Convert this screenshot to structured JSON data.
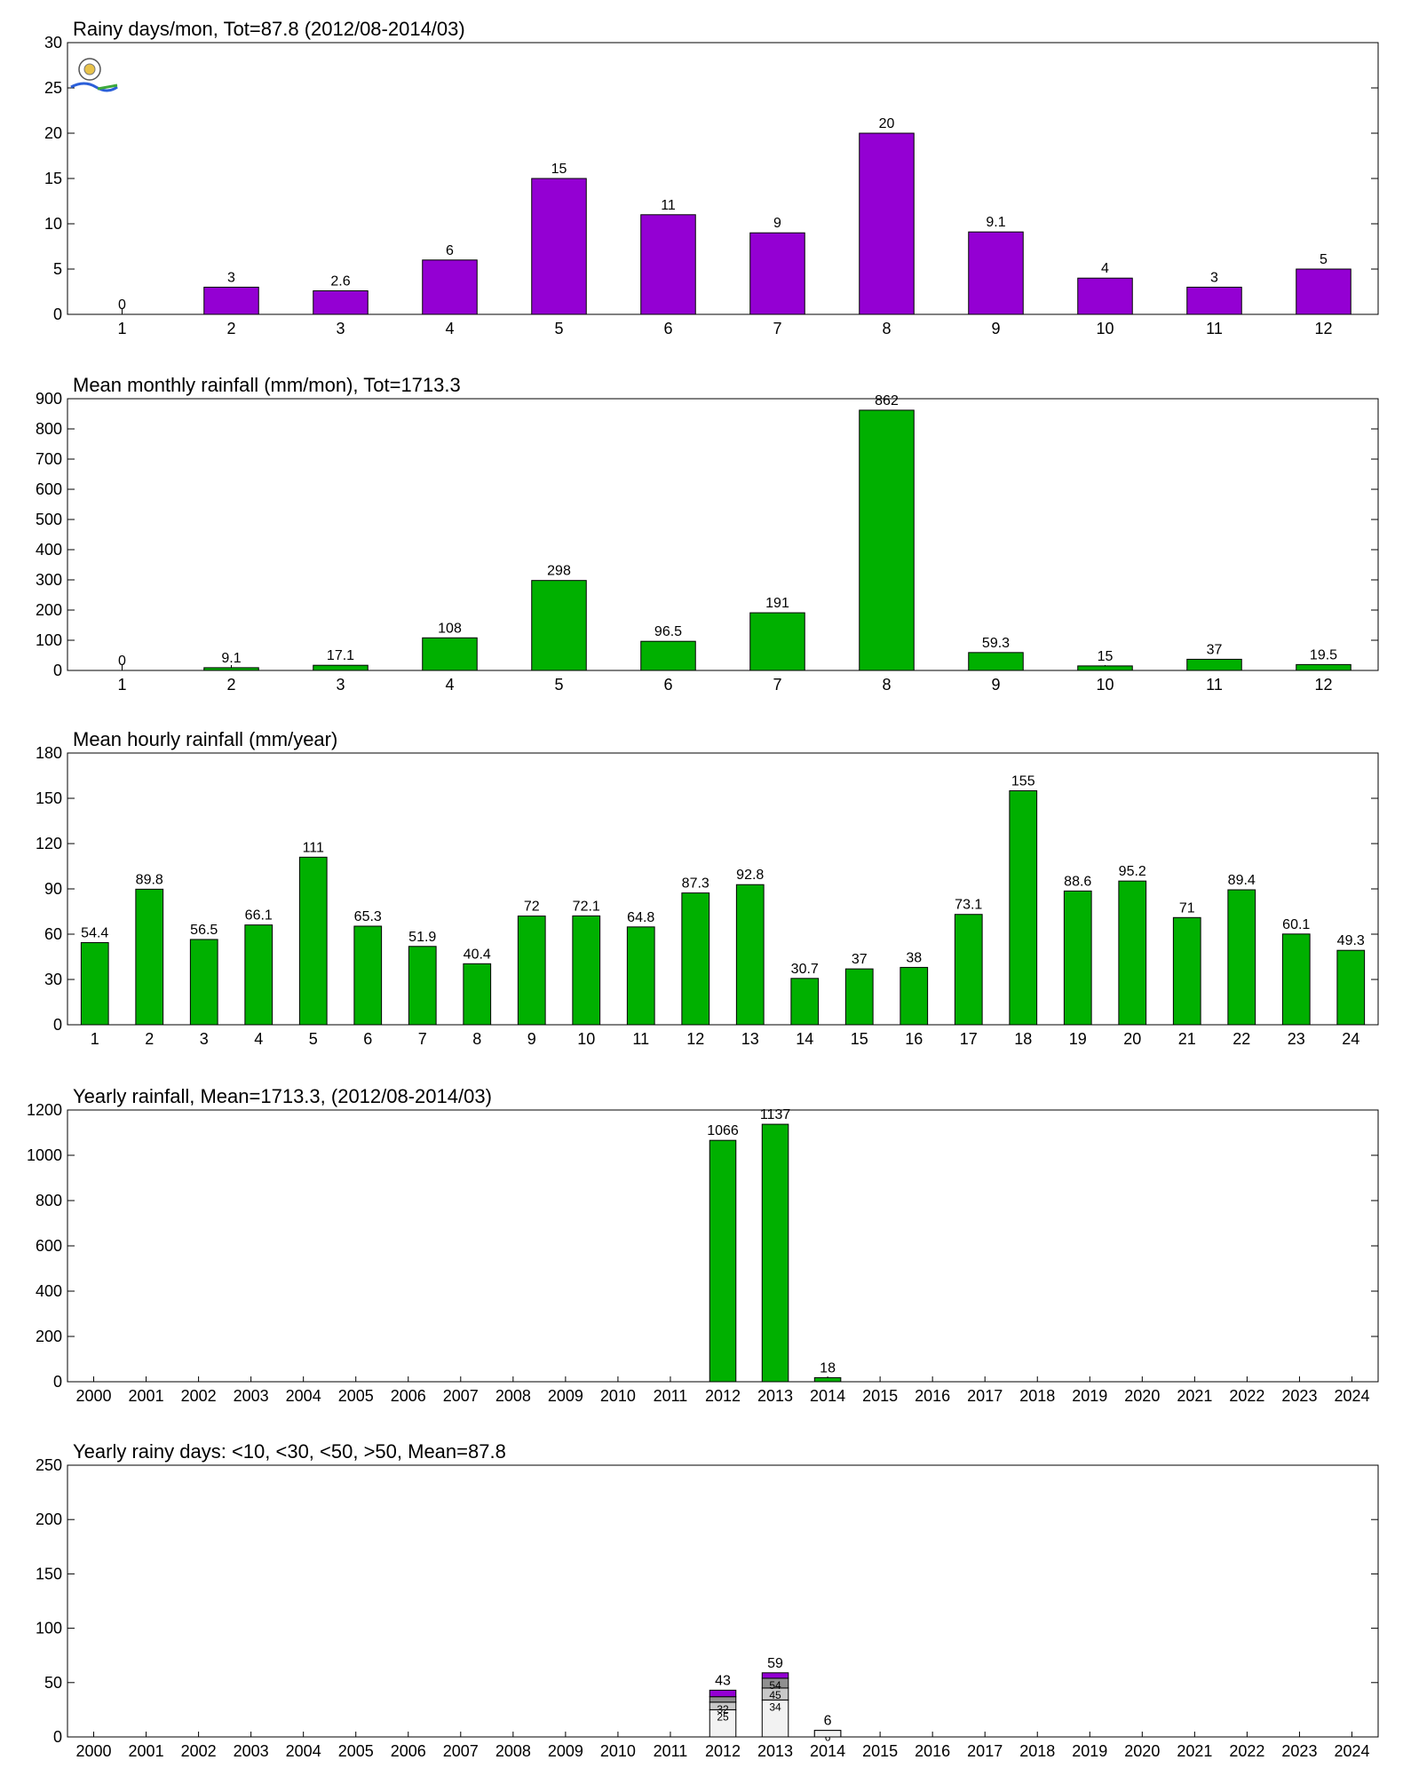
{
  "charts": [
    {
      "type": "bar",
      "title": "Rainy days/mon, Tot=87.8 (2012/08-2014/03)",
      "categories": [
        "1",
        "2",
        "3",
        "4",
        "5",
        "6",
        "7",
        "8",
        "9",
        "10",
        "11",
        "12"
      ],
      "values": [
        0,
        3,
        2.6,
        6,
        15,
        11,
        9,
        20,
        9.1,
        4,
        3,
        5
      ],
      "labels": [
        "0",
        "3",
        "2.6",
        "6",
        "15",
        "11",
        "9",
        "20",
        "9.1",
        "4",
        "3",
        "5"
      ],
      "yticks": [
        0,
        5,
        10,
        15,
        20,
        25,
        30
      ],
      "ylim": [
        0,
        30
      ],
      "color": "#9400d3",
      "has_logo": true
    },
    {
      "type": "bar",
      "title": "Mean monthly rainfall (mm/mon), Tot=1713.3",
      "categories": [
        "1",
        "2",
        "3",
        "4",
        "5",
        "6",
        "7",
        "8",
        "9",
        "10",
        "11",
        "12"
      ],
      "values": [
        0,
        9.1,
        17.1,
        108,
        298,
        96.5,
        191,
        862,
        59.3,
        15,
        37,
        19.5
      ],
      "labels": [
        "0",
        "9.1",
        "17.1",
        "108",
        "298",
        "96.5",
        "191",
        "862",
        "59.3",
        "15",
        "37",
        "19.5"
      ],
      "yticks": [
        0,
        100,
        200,
        300,
        400,
        500,
        600,
        700,
        800,
        900
      ],
      "ylim": [
        0,
        900
      ],
      "color": "#00b000"
    },
    {
      "type": "bar",
      "title": "Mean hourly rainfall (mm/year)",
      "categories": [
        "1",
        "2",
        "3",
        "4",
        "5",
        "6",
        "7",
        "8",
        "9",
        "10",
        "11",
        "12",
        "13",
        "14",
        "15",
        "16",
        "17",
        "18",
        "19",
        "20",
        "21",
        "22",
        "23",
        "24"
      ],
      "values": [
        54.4,
        89.8,
        56.5,
        66.1,
        111,
        65.3,
        51.9,
        40.4,
        72,
        72.1,
        64.8,
        87.3,
        92.8,
        30.7,
        37,
        38,
        73.1,
        155,
        88.6,
        95.2,
        71,
        89.4,
        60.1,
        49.3
      ],
      "labels": [
        "54.4",
        "89.8",
        "56.5",
        "66.1",
        "111",
        "65.3",
        "51.9",
        "40.4",
        "72",
        "72.1",
        "64.8",
        "87.3",
        "92.8",
        "30.7",
        "37",
        "38",
        "73.1",
        "155",
        "88.6",
        "95.2",
        "71",
        "89.4",
        "60.1",
        "49.3"
      ],
      "yticks": [
        0,
        30,
        60,
        90,
        120,
        150,
        180
      ],
      "ylim": [
        0,
        180
      ],
      "color": "#00b000"
    },
    {
      "type": "bar",
      "title": "Yearly rainfall, Mean=1713.3, (2012/08-2014/03)",
      "categories": [
        "2000",
        "2001",
        "2002",
        "2003",
        "2004",
        "2005",
        "2006",
        "2007",
        "2008",
        "2009",
        "2010",
        "2011",
        "2012",
        "2013",
        "2014",
        "2015",
        "2016",
        "2017",
        "2018",
        "2019",
        "2020",
        "2021",
        "2022",
        "2023",
        "2024"
      ],
      "values": [
        null,
        null,
        null,
        null,
        null,
        null,
        null,
        null,
        null,
        null,
        null,
        null,
        1066,
        1137,
        18,
        null,
        null,
        null,
        null,
        null,
        null,
        null,
        null,
        null,
        null
      ],
      "labels": [
        "",
        "",
        "",
        "",
        "",
        "",
        "",
        "",
        "",
        "",
        "",
        "",
        "1066",
        "1137",
        "18",
        "",
        "",
        "",
        "",
        "",
        "",
        "",
        "",
        "",
        ""
      ],
      "yticks": [
        0,
        200,
        400,
        600,
        800,
        1000,
        1200
      ],
      "ylim": [
        0,
        1200
      ],
      "color": "#00b000"
    },
    {
      "type": "stacked_bar",
      "title": "Yearly rainy days: <10, <30, <50, >50, Mean=87.8",
      "categories": [
        "2000",
        "2001",
        "2002",
        "2003",
        "2004",
        "2005",
        "2006",
        "2007",
        "2008",
        "2009",
        "2010",
        "2011",
        "2012",
        "2013",
        "2014",
        "2015",
        "2016",
        "2017",
        "2018",
        "2019",
        "2020",
        "2021",
        "2022",
        "2023",
        "2024"
      ],
      "stack_colors": [
        "#f2f2f2",
        "#c8c8c8",
        "#909090",
        "#9400d3"
      ],
      "stacks": [
        {
          "year": "2012",
          "cumulative": [
            25,
            32,
            37,
            43
          ],
          "labels": [
            "25",
            "32",
            "",
            ""
          ],
          "total_label": "43"
        },
        {
          "year": "2013",
          "cumulative": [
            34,
            45,
            54,
            59
          ],
          "labels": [
            "34",
            "45",
            "54",
            ""
          ],
          "total_label": "59"
        },
        {
          "year": "2014",
          "cumulative": [
            6,
            6,
            6,
            6
          ],
          "labels": [
            "6",
            "",
            "",
            ""
          ],
          "total_label": "6"
        }
      ],
      "yticks": [
        0,
        50,
        100,
        150,
        200,
        250
      ],
      "ylim": [
        0,
        250
      ]
    }
  ],
  "chart_data": [
    {
      "type": "bar",
      "title": "Rainy days/mon, Tot=87.8 (2012/08-2014/03)",
      "categories": [
        "1",
        "2",
        "3",
        "4",
        "5",
        "6",
        "7",
        "8",
        "9",
        "10",
        "11",
        "12"
      ],
      "values": [
        0,
        3,
        2.6,
        6,
        15,
        11,
        9,
        20,
        9.1,
        4,
        3,
        5
      ],
      "ylim": [
        0,
        30
      ]
    },
    {
      "type": "bar",
      "title": "Mean monthly rainfall (mm/mon), Tot=1713.3",
      "categories": [
        "1",
        "2",
        "3",
        "4",
        "5",
        "6",
        "7",
        "8",
        "9",
        "10",
        "11",
        "12"
      ],
      "values": [
        0,
        9.1,
        17.1,
        108,
        298,
        96.5,
        191,
        862,
        59.3,
        15,
        37,
        19.5
      ],
      "ylim": [
        0,
        900
      ]
    },
    {
      "type": "bar",
      "title": "Mean hourly rainfall (mm/year)",
      "categories": [
        "1",
        "2",
        "3",
        "4",
        "5",
        "6",
        "7",
        "8",
        "9",
        "10",
        "11",
        "12",
        "13",
        "14",
        "15",
        "16",
        "17",
        "18",
        "19",
        "20",
        "21",
        "22",
        "23",
        "24"
      ],
      "values": [
        54.4,
        89.8,
        56.5,
        66.1,
        111,
        65.3,
        51.9,
        40.4,
        72,
        72.1,
        64.8,
        87.3,
        92.8,
        30.7,
        37,
        38,
        73.1,
        155,
        88.6,
        95.2,
        71,
        89.4,
        60.1,
        49.3
      ],
      "ylim": [
        0,
        180
      ]
    },
    {
      "type": "bar",
      "title": "Yearly rainfall, Mean=1713.3, (2012/08-2014/03)",
      "categories": [
        "2012",
        "2013",
        "2014"
      ],
      "values": [
        1066,
        1137,
        18
      ],
      "ylim": [
        0,
        1200
      ]
    },
    {
      "type": "bar",
      "title": "Yearly rainy days: <10, <30, <50, >50, Mean=87.8",
      "categories": [
        "2012",
        "2013",
        "2014"
      ],
      "series": [
        {
          "values": [
            25,
            34,
            6
          ]
        },
        {
          "values": [
            7,
            11,
            0
          ]
        },
        {
          "values": [
            5,
            9,
            0
          ]
        },
        {
          "values": [
            6,
            5,
            0
          ]
        }
      ],
      "totals": [
        43,
        59,
        6
      ],
      "ylim": [
        0,
        250
      ]
    }
  ]
}
